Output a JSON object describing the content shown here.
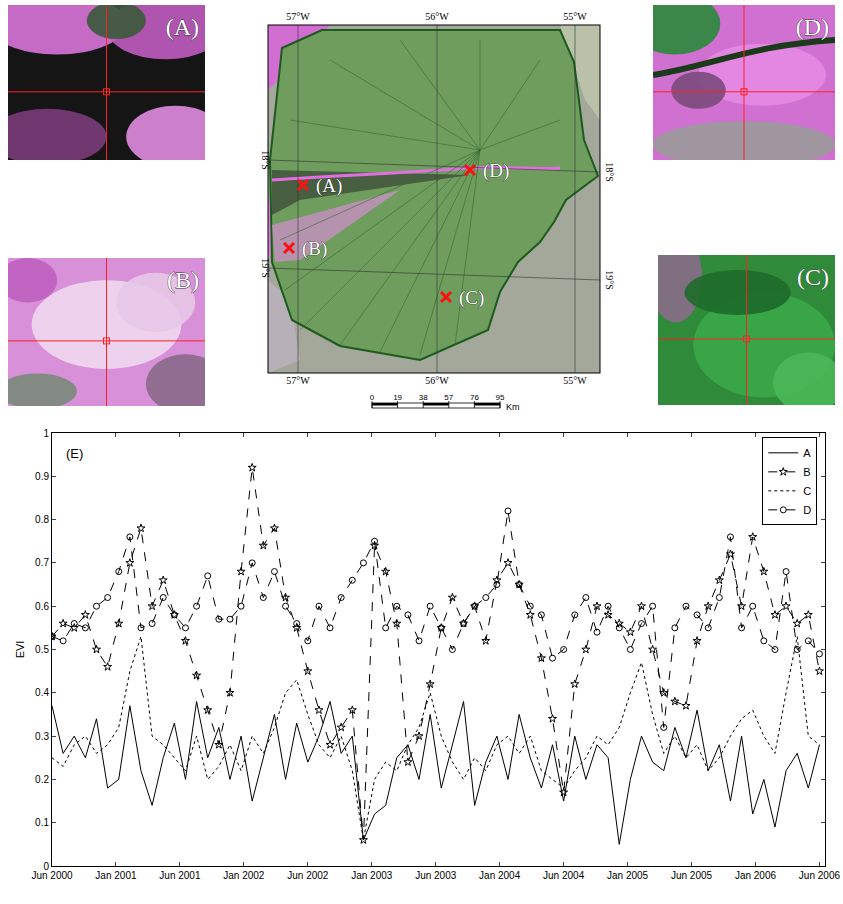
{
  "chart_data": {
    "type": "line",
    "y_label": "EVI",
    "annotations": [
      "(E)"
    ],
    "x": [
      0,
      2,
      4,
      6,
      8,
      10,
      12,
      14,
      16,
      18,
      20,
      22,
      24,
      26,
      28,
      30,
      32,
      34,
      36,
      38,
      40,
      42,
      44,
      46,
      48,
      50,
      52,
      54,
      56,
      58,
      60,
      62,
      64,
      66,
      68,
      70,
      72,
      74,
      76,
      78,
      80,
      82,
      84,
      86,
      88,
      90,
      92,
      94,
      96,
      98,
      100,
      102,
      104,
      106,
      108,
      110,
      112,
      114,
      116,
      118,
      120,
      122,
      124,
      126,
      128,
      130,
      132,
      134,
      136,
      138
    ],
    "xlim": [
      0,
      139
    ],
    "xticks": [
      {
        "value": 0,
        "label": "Jun 2000"
      },
      {
        "value": 11.5,
        "label": "Jan 2001"
      },
      {
        "value": 23,
        "label": "Jun 2001"
      },
      {
        "value": 34.5,
        "label": "Jan 2002"
      },
      {
        "value": 46,
        "label": "Jun 2002"
      },
      {
        "value": 57.5,
        "label": "Jan 2003"
      },
      {
        "value": 69,
        "label": "Jun 2003"
      },
      {
        "value": 80.5,
        "label": "Jan 2004"
      },
      {
        "value": 92,
        "label": "Jun 2004"
      },
      {
        "value": 103.5,
        "label": "Jan 2005"
      },
      {
        "value": 115,
        "label": "Jun 2005"
      },
      {
        "value": 126.5,
        "label": "Jan 2006"
      },
      {
        "value": 138,
        "label": "Jun 2006"
      }
    ],
    "ylim": [
      0,
      1
    ],
    "yticks": [
      0,
      0.1,
      0.2,
      0.3,
      0.4,
      0.5,
      0.6,
      0.7,
      0.8,
      0.9,
      1
    ],
    "grid": false,
    "legend": "upper right",
    "series": [
      {
        "name": "A",
        "color": "#000000",
        "line_style": "solid",
        "marker": "none",
        "values": [
          0.37,
          0.26,
          0.3,
          0.25,
          0.34,
          0.18,
          0.2,
          0.37,
          0.22,
          0.14,
          0.25,
          0.33,
          0.2,
          0.38,
          0.25,
          0.32,
          0.2,
          0.3,
          0.15,
          0.25,
          0.35,
          0.2,
          0.33,
          0.24,
          0.3,
          0.38,
          0.26,
          0.3,
          0.06,
          0.12,
          0.14,
          0.25,
          0.28,
          0.2,
          0.35,
          0.18,
          0.28,
          0.38,
          0.14,
          0.24,
          0.3,
          0.2,
          0.35,
          0.25,
          0.18,
          0.28,
          0.15,
          0.3,
          0.2,
          0.28,
          0.25,
          0.05,
          0.2,
          0.3,
          0.24,
          0.22,
          0.32,
          0.25,
          0.36,
          0.22,
          0.28,
          0.15,
          0.3,
          0.12,
          0.2,
          0.09,
          0.22,
          0.26,
          0.18,
          0.28
        ]
      },
      {
        "name": "B",
        "color": "#000000",
        "line_style": "dash",
        "marker": "star",
        "values": [
          0.53,
          0.56,
          0.55,
          0.58,
          0.5,
          0.46,
          0.56,
          0.7,
          0.78,
          0.6,
          0.66,
          0.58,
          0.52,
          0.44,
          0.36,
          0.28,
          0.4,
          0.68,
          0.92,
          0.74,
          0.78,
          0.62,
          0.55,
          0.45,
          0.36,
          0.28,
          0.32,
          0.36,
          0.06,
          0.74,
          0.68,
          0.56,
          0.24,
          0.3,
          0.42,
          0.55,
          0.62,
          0.56,
          0.6,
          0.52,
          0.66,
          0.7,
          0.65,
          0.58,
          0.48,
          0.34,
          0.17,
          0.42,
          0.5,
          0.6,
          0.58,
          0.56,
          0.54,
          0.6,
          0.5,
          0.4,
          0.38,
          0.37,
          0.52,
          0.6,
          0.66,
          0.72,
          0.6,
          0.76,
          0.68,
          0.58,
          0.6,
          0.56,
          0.58,
          0.45
        ]
      },
      {
        "name": "C",
        "color": "#000000",
        "line_style": "dot",
        "marker": "none",
        "values": [
          0.25,
          0.23,
          0.28,
          0.3,
          0.26,
          0.28,
          0.32,
          0.45,
          0.53,
          0.3,
          0.28,
          0.25,
          0.22,
          0.3,
          0.2,
          0.23,
          0.28,
          0.22,
          0.3,
          0.26,
          0.32,
          0.4,
          0.43,
          0.35,
          0.28,
          0.25,
          0.3,
          0.22,
          0.06,
          0.2,
          0.24,
          0.22,
          0.28,
          0.32,
          0.4,
          0.3,
          0.24,
          0.2,
          0.25,
          0.22,
          0.28,
          0.3,
          0.26,
          0.3,
          0.22,
          0.2,
          0.18,
          0.22,
          0.25,
          0.3,
          0.28,
          0.32,
          0.4,
          0.47,
          0.35,
          0.26,
          0.3,
          0.25,
          0.28,
          0.22,
          0.25,
          0.3,
          0.34,
          0.36,
          0.3,
          0.26,
          0.4,
          0.53,
          0.3,
          0.28
        ]
      },
      {
        "name": "D",
        "color": "#000000",
        "line_style": "dash",
        "marker": "circle",
        "values": [
          0.53,
          0.52,
          0.56,
          0.55,
          0.6,
          0.62,
          0.68,
          0.76,
          0.55,
          0.56,
          0.62,
          0.58,
          0.55,
          0.6,
          0.67,
          0.57,
          0.57,
          0.6,
          0.7,
          0.62,
          0.68,
          0.6,
          0.56,
          0.52,
          0.6,
          0.55,
          0.62,
          0.66,
          0.7,
          0.75,
          0.55,
          0.6,
          0.58,
          0.52,
          0.6,
          0.55,
          0.5,
          0.56,
          0.6,
          0.62,
          0.65,
          0.82,
          0.65,
          0.6,
          0.58,
          0.48,
          0.5,
          0.58,
          0.62,
          0.54,
          0.6,
          0.55,
          0.5,
          0.56,
          0.6,
          0.32,
          0.55,
          0.6,
          0.58,
          0.55,
          0.62,
          0.76,
          0.55,
          0.6,
          0.52,
          0.5,
          0.68,
          0.5,
          0.52,
          0.49
        ]
      }
    ]
  },
  "map": {
    "lon_labels": [
      "57°W",
      "56°W",
      "55°W"
    ],
    "lat_labels": [
      "18°S",
      "19°S"
    ],
    "sites": [
      "(A)",
      "(B)",
      "(C)",
      "(D)"
    ],
    "scale": {
      "ticks": [
        0,
        19,
        38,
        57,
        76,
        95
      ],
      "unit": "Km"
    }
  },
  "insets": [
    "(A)",
    "(B)",
    "(D)",
    "(C)"
  ]
}
